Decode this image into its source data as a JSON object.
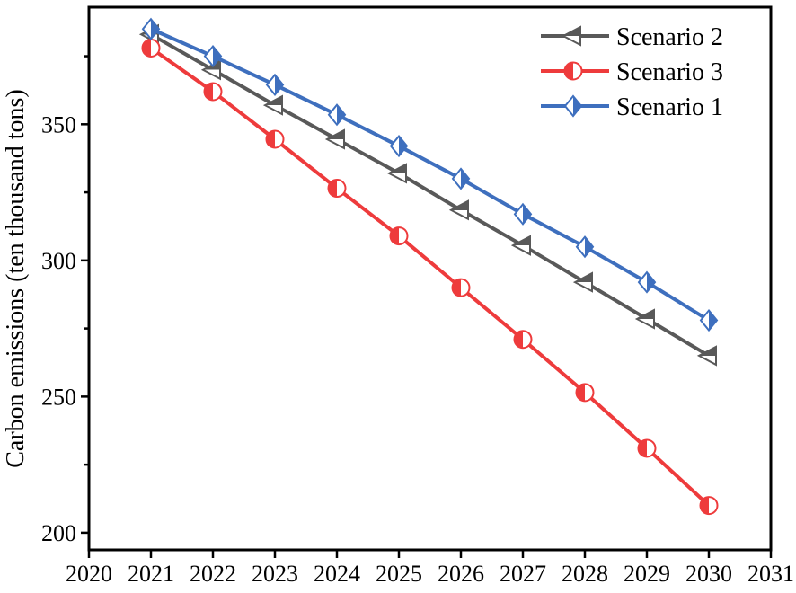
{
  "chart_data": {
    "type": "line",
    "title": "",
    "xlabel": "",
    "ylabel": "Carbon emissions (ten thousand tons)",
    "x": [
      2021,
      2022,
      2023,
      2024,
      2025,
      2026,
      2027,
      2028,
      2029,
      2030
    ],
    "x_ticks": [
      2020,
      2021,
      2022,
      2023,
      2024,
      2025,
      2026,
      2027,
      2028,
      2029,
      2030,
      2031
    ],
    "y_ticks_major": [
      200,
      250,
      300,
      350
    ],
    "y_ticks_minor": [
      225,
      275,
      325,
      375
    ],
    "xlim": [
      2020,
      2031
    ],
    "ylim": [
      193.7,
      393.0
    ],
    "grid": false,
    "axis_color": "#000000",
    "legend_position": "top-right",
    "series": [
      {
        "name": "Scenario 2",
        "color": "#595959",
        "marker": "triangle-left-half-top",
        "values": [
          383,
          370,
          357,
          344.5,
          332,
          318.5,
          305.5,
          292,
          278.5,
          265
        ]
      },
      {
        "name": "Scenario 3",
        "color": "#ee3b3c",
        "marker": "circle-half-left",
        "values": [
          378,
          362,
          344.5,
          326.5,
          309,
          290,
          271,
          251.5,
          231,
          210
        ]
      },
      {
        "name": "Scenario 1",
        "color": "#3e6fbe",
        "marker": "diamond-half-right",
        "values": [
          385,
          375,
          364.5,
          353.5,
          342,
          330,
          317,
          305,
          292,
          278
        ]
      }
    ]
  }
}
